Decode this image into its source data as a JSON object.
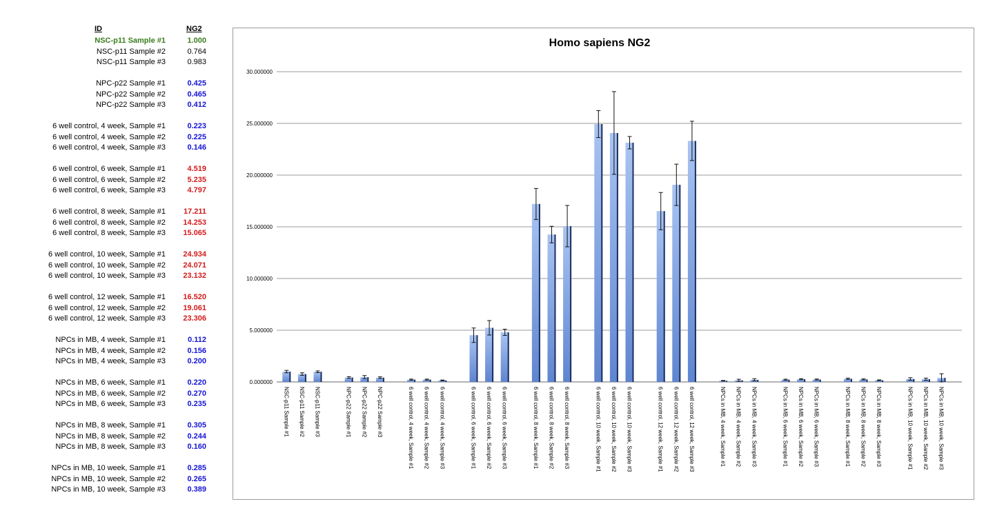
{
  "table": {
    "headers": {
      "id": "ID",
      "value": "NG2"
    },
    "colors": {
      "reference": "#3a7d1c",
      "low": "#1414d6",
      "high": "#d41a1a",
      "normal": "#000000"
    },
    "rows": [
      {
        "id": "NSC-p11 Sample #1",
        "value": "1.000",
        "tone": "reference"
      },
      {
        "id": "NSC-p11 Sample #2",
        "value": "0.764",
        "tone": "normal"
      },
      {
        "id": "NSC-p11 Sample #3",
        "value": "0.983",
        "tone": "normal"
      },
      {
        "id": "NPC-p22 Sample #1",
        "value": "0.425",
        "tone": "low"
      },
      {
        "id": "NPC-p22 Sample #2",
        "value": "0.465",
        "tone": "low"
      },
      {
        "id": "NPC-p22 Sample #3",
        "value": "0.412",
        "tone": "low"
      },
      {
        "id": "6 well control, 4 week, Sample #1",
        "value": "0.223",
        "tone": "low"
      },
      {
        "id": "6 well control, 4 week, Sample #2",
        "value": "0.225",
        "tone": "low"
      },
      {
        "id": "6 well control, 4 week, Sample #3",
        "value": "0.146",
        "tone": "low"
      },
      {
        "id": "6 well control, 6 week, Sample #1",
        "value": "4.519",
        "tone": "high"
      },
      {
        "id": "6 well control, 6 week, Sample #2",
        "value": "5.235",
        "tone": "high"
      },
      {
        "id": "6 well control, 6 week, Sample #3",
        "value": "4.797",
        "tone": "high"
      },
      {
        "id": "6 well control, 8 week, Sample #1",
        "value": "17.211",
        "tone": "high"
      },
      {
        "id": "6 well control, 8 week, Sample #2",
        "value": "14.253",
        "tone": "high"
      },
      {
        "id": "6 well control, 8 week, Sample #3",
        "value": "15.065",
        "tone": "high"
      },
      {
        "id": "6 well control, 10 week, Sample #1",
        "value": "24.934",
        "tone": "high"
      },
      {
        "id": "6 well control, 10 week, Sample #2",
        "value": "24.071",
        "tone": "high"
      },
      {
        "id": "6 well control, 10 week, Sample #3",
        "value": "23.132",
        "tone": "high"
      },
      {
        "id": "6 well control, 12 week, Sample #1",
        "value": "16.520",
        "tone": "high"
      },
      {
        "id": "6 well control, 12 week, Sample #2",
        "value": "19.061",
        "tone": "high"
      },
      {
        "id": "6 well control, 12 week, Sample #3",
        "value": "23.306",
        "tone": "high"
      },
      {
        "id": "NPCs in MB, 4 week, Sample #1",
        "value": "0.112",
        "tone": "low"
      },
      {
        "id": "NPCs in MB, 4 week, Sample #2",
        "value": "0.156",
        "tone": "low"
      },
      {
        "id": "NPCs in MB, 4 week, Sample #3",
        "value": "0.200",
        "tone": "low"
      },
      {
        "id": "NPCs in MB, 6 week, Sample #1",
        "value": "0.220",
        "tone": "low"
      },
      {
        "id": "NPCs in MB, 6 week, Sample #2",
        "value": "0.270",
        "tone": "low"
      },
      {
        "id": "NPCs in MB, 6 week, Sample #3",
        "value": "0.235",
        "tone": "low"
      },
      {
        "id": "NPCs in MB, 8 week, Sample #1",
        "value": "0.305",
        "tone": "low"
      },
      {
        "id": "NPCs in MB, 8 week, Sample #2",
        "value": "0.244",
        "tone": "low"
      },
      {
        "id": "NPCs in MB, 8 week, Sample #3",
        "value": "0.160",
        "tone": "low"
      },
      {
        "id": "NPCs in MB, 10 week, Sample #1",
        "value": "0.285",
        "tone": "low"
      },
      {
        "id": "NPCs in MB, 10 week, Sample #2",
        "value": "0.265",
        "tone": "low"
      },
      {
        "id": "NPCs in MB, 10 week, Sample #3",
        "value": "0.389",
        "tone": "low"
      }
    ]
  },
  "chart_data": {
    "type": "bar",
    "title": "Homo sapiens NG2",
    "xlabel": "",
    "ylabel": "",
    "ylim": [
      0,
      30
    ],
    "yticks": [
      "0.000000",
      "5.000000",
      "10.000000",
      "15.000000",
      "20.000000",
      "25.000000",
      "30.000000"
    ],
    "grid": true,
    "legend": "none",
    "bar_color": "#8fb0e8",
    "groups": [
      {
        "categories": [
          "NSC-p11 Sample #1",
          "NSC-p11 Sample #2",
          "NSC-p11 Sample #3"
        ],
        "values": [
          1.0,
          0.764,
          0.983
        ],
        "errors": [
          0.12,
          0.12,
          0.08
        ]
      },
      {
        "categories": [
          "NPC-p22 Sample #1",
          "NPC-p22 Sample #2",
          "NPC-p22 Sample #3"
        ],
        "values": [
          0.425,
          0.465,
          0.412
        ],
        "errors": [
          0.08,
          0.15,
          0.08
        ]
      },
      {
        "categories": [
          "6 well control, 4 week, Sample #1",
          "6 well control, 4 week, Sample #2",
          "6 well control, 4 week, Sample #3"
        ],
        "values": [
          0.223,
          0.225,
          0.146
        ],
        "errors": [
          0.05,
          0.05,
          0.04
        ]
      },
      {
        "categories": [
          "6 well control, 6 week, Sample #1",
          "6 well control, 6 week, Sample #2",
          "6 well control, 6 week, Sample #3"
        ],
        "values": [
          4.519,
          5.235,
          4.797
        ],
        "errors": [
          0.7,
          0.7,
          0.3
        ]
      },
      {
        "categories": [
          "6 well control, 8 week, Sample #1",
          "6 well control, 8 week, Sample #2",
          "6 well control, 8 week, Sample #3"
        ],
        "values": [
          17.211,
          14.253,
          15.065
        ],
        "errors": [
          1.5,
          0.8,
          2.0
        ]
      },
      {
        "categories": [
          "6 well control, 10 week, Sample #1",
          "6 well control, 10 week, Sample #2",
          "6 well control, 10 week, Sample #3"
        ],
        "values": [
          24.934,
          24.071,
          23.132
        ],
        "errors": [
          1.3,
          4.0,
          0.6
        ]
      },
      {
        "categories": [
          "6 well control, 12 week, Sample #1",
          "6 well control, 12 week, Sample #2",
          "6 well control, 12 week, Sample #3"
        ],
        "values": [
          16.52,
          19.061,
          23.306
        ],
        "errors": [
          1.8,
          2.0,
          1.9
        ]
      },
      {
        "categories": [
          "NPCs in MB, 4 week, Sample #1",
          "NPCs in MB, 4 week, Sample #2",
          "NPCs in MB, 4 week, Sample #3"
        ],
        "values": [
          0.112,
          0.156,
          0.2
        ],
        "errors": [
          0.03,
          0.1,
          0.1
        ]
      },
      {
        "categories": [
          "NPCs in MB, 6 week, Sample #1",
          "NPCs in MB, 6 week, Sample #2",
          "NPCs in MB, 6 week, Sample #3"
        ],
        "values": [
          0.22,
          0.27,
          0.235
        ],
        "errors": [
          0.05,
          0.05,
          0.05
        ]
      },
      {
        "categories": [
          "NPCs in MB, 8 week, Sample #1",
          "NPCs in MB, 8 week, Sample #2",
          "NPCs in MB, 8 week, Sample #3"
        ],
        "values": [
          0.305,
          0.244,
          0.16
        ],
        "errors": [
          0.06,
          0.05,
          0.04
        ]
      },
      {
        "categories": [
          "NPCs in MB, 10 week, Sample #1",
          "NPCs in MB, 10 week, Sample #2",
          "NPCs in MB, 10 week, Sample #3"
        ],
        "values": [
          0.285,
          0.265,
          0.389
        ],
        "errors": [
          0.12,
          0.1,
          0.4
        ]
      }
    ]
  }
}
